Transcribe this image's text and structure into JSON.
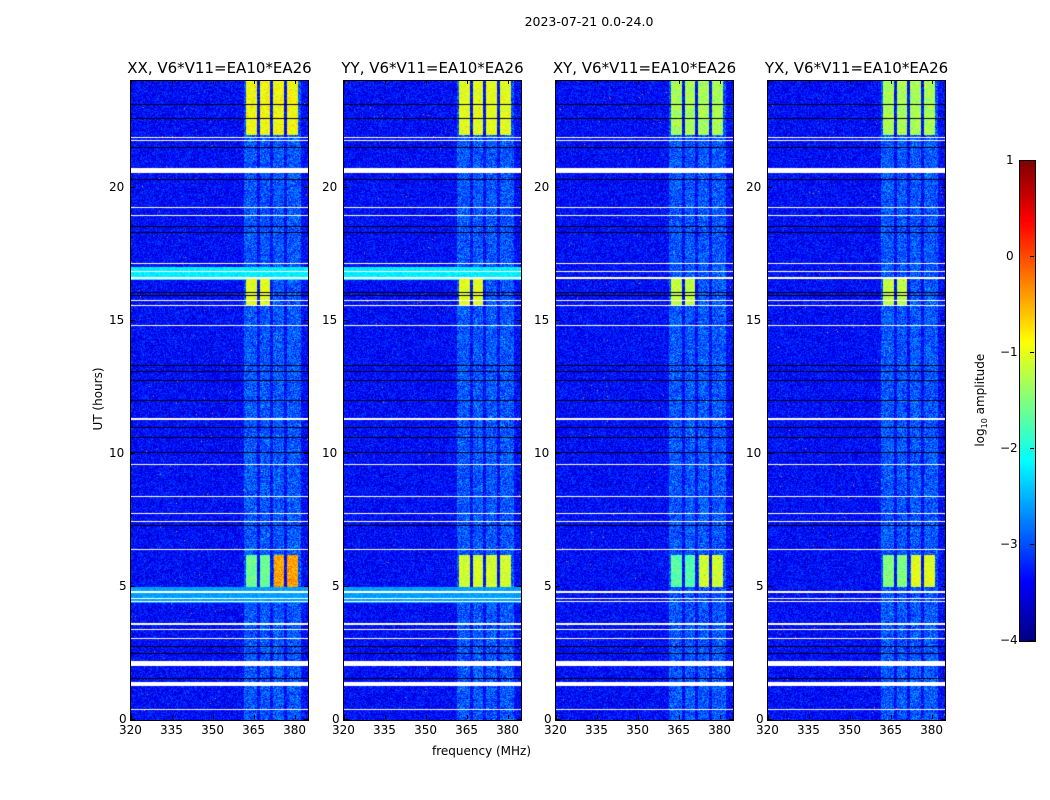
{
  "title": "2023-07-21 0.0-24.0",
  "chart_data": {
    "type": "heatmap",
    "xlabel": "frequency (MHz)",
    "ylabel": "UT (hours)",
    "xlim": [
      320,
      384.7
    ],
    "ylim": [
      0,
      24
    ],
    "xticks": [
      320,
      335,
      350,
      365,
      380
    ],
    "yticks": [
      0,
      5,
      10,
      15,
      20
    ],
    "colorbar": {
      "label_prefix": "log",
      "label_sub": "10",
      "label_suffix": " amplitude",
      "range": [
        -4,
        1
      ],
      "ticks": [
        1,
        0,
        -1,
        -2,
        -3,
        -4
      ],
      "colormap": "jet"
    },
    "panels": [
      {
        "title": "XX, V6*V11=EA10*EA26",
        "broadband": [
          [
            16.55,
            17.05,
            -2.2
          ],
          [
            4.4,
            5.0,
            -2.6
          ]
        ],
        "rfi": [
          [
            22.0,
            24.0,
            362,
            381,
            -0.9
          ],
          [
            15.6,
            16.6,
            362,
            371,
            -1.0
          ],
          [
            5.0,
            6.2,
            372,
            381,
            -0.4
          ],
          [
            5.0,
            6.2,
            362,
            371,
            -1.6
          ]
        ]
      },
      {
        "title": "YY, V6*V11=EA10*EA26",
        "broadband": [
          [
            16.55,
            17.05,
            -2.2
          ],
          [
            4.4,
            5.0,
            -2.6
          ]
        ],
        "rfi": [
          [
            22.0,
            24.0,
            362,
            381,
            -1.0
          ],
          [
            15.6,
            16.6,
            362,
            371,
            -1.0
          ],
          [
            5.0,
            6.2,
            362,
            381,
            -1.1
          ]
        ]
      },
      {
        "title": "XY, V6*V11=EA10*EA26",
        "broadband": [],
        "rfi": [
          [
            22.0,
            24.0,
            362,
            381,
            -1.3
          ],
          [
            15.6,
            16.6,
            362,
            371,
            -1.2
          ],
          [
            5.0,
            6.2,
            372,
            381,
            -1.1
          ],
          [
            5.0,
            6.2,
            362,
            371,
            -1.7
          ]
        ]
      },
      {
        "title": "YX, V6*V11=EA10*EA26",
        "broadband": [],
        "rfi": [
          [
            22.0,
            24.0,
            362,
            381,
            -1.3
          ],
          [
            15.6,
            16.6,
            362,
            371,
            -1.2
          ],
          [
            5.0,
            6.2,
            372,
            381,
            -1.0
          ],
          [
            5.0,
            6.2,
            362,
            371,
            -1.5
          ]
        ]
      }
    ],
    "flagged_hours": [
      [
        20.55,
        20.75
      ],
      [
        21.75,
        21.8
      ],
      [
        21.88,
        21.93
      ],
      [
        19.25,
        19.3
      ],
      [
        18.95,
        19.0
      ],
      [
        17.15,
        17.2
      ],
      [
        16.85,
        16.9
      ],
      [
        16.6,
        16.65
      ],
      [
        15.75,
        15.8
      ],
      [
        15.55,
        15.6
      ],
      [
        14.82,
        14.87
      ],
      [
        11.3,
        11.35
      ],
      [
        9.6,
        9.65
      ],
      [
        8.4,
        8.45
      ],
      [
        7.75,
        7.8
      ],
      [
        7.45,
        7.5
      ],
      [
        6.4,
        6.45
      ],
      [
        4.8,
        4.85
      ],
      [
        4.55,
        4.6
      ],
      [
        4.45,
        4.5
      ],
      [
        3.6,
        3.65
      ],
      [
        3.4,
        3.45
      ],
      [
        3.05,
        3.1
      ],
      [
        2.05,
        2.25
      ],
      [
        1.3,
        1.45
      ],
      [
        0.38,
        0.43
      ]
    ],
    "dark_hours": [
      [
        23.1,
        23.14
      ],
      [
        22.6,
        22.64
      ],
      [
        21.5,
        21.53
      ],
      [
        20.3,
        20.33
      ],
      [
        18.55,
        18.58
      ],
      [
        18.3,
        18.33
      ],
      [
        17.66,
        17.69
      ],
      [
        16.05,
        16.08
      ],
      [
        15.95,
        15.98
      ],
      [
        13.3,
        13.34
      ],
      [
        13.1,
        13.14
      ],
      [
        12.75,
        12.78
      ],
      [
        12.0,
        12.03
      ],
      [
        11.5,
        11.53
      ],
      [
        11.0,
        11.03
      ],
      [
        10.6,
        10.63
      ],
      [
        10.05,
        10.08
      ],
      [
        7.3,
        7.33
      ],
      [
        6.5,
        6.53
      ],
      [
        6.2,
        6.23
      ],
      [
        2.75,
        2.78
      ],
      [
        2.5,
        2.53
      ],
      [
        1.55,
        1.58
      ]
    ]
  }
}
